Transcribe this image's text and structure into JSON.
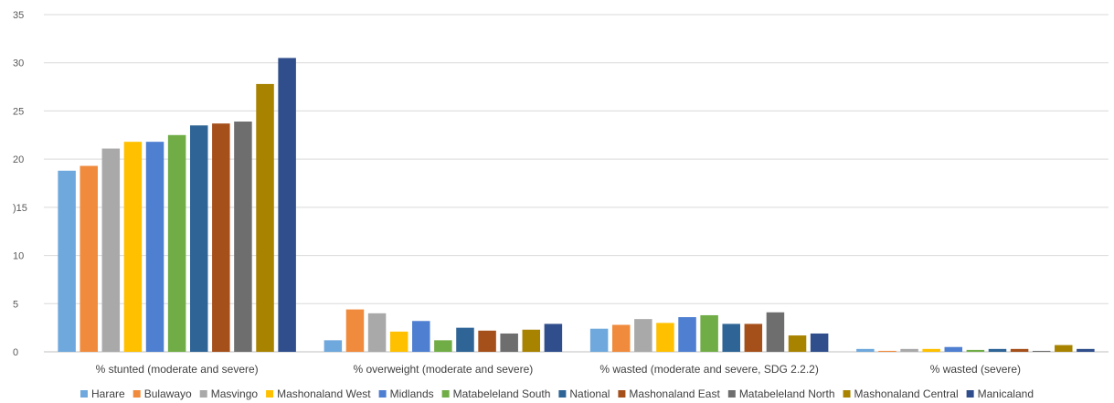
{
  "chart_data": {
    "type": "bar",
    "title": "",
    "xlabel": "",
    "ylabel": "",
    "ylim": [
      0,
      35
    ],
    "yticks": [
      0,
      5,
      10,
      15,
      20,
      25,
      30,
      35
    ],
    "ytick_labels": [
      "0",
      "5",
      "10",
      ")15",
      "20",
      "25",
      "30",
      "35"
    ],
    "grid": true,
    "legend_position": "bottom",
    "categories": [
      "% stunted (moderate and severe)",
      "% overweight (moderate and severe)",
      "% wasted (moderate and severe, SDG 2.2.2)",
      "% wasted (severe)"
    ],
    "series": [
      {
        "name": "Harare",
        "color": "#6FA8DC",
        "values": [
          18.8,
          1.2,
          2.4,
          0.3
        ]
      },
      {
        "name": "Bulawayo",
        "color": "#F08A3C",
        "values": [
          19.3,
          4.4,
          2.8,
          0.1
        ]
      },
      {
        "name": "Masvingo",
        "color": "#A9A9A9",
        "values": [
          21.1,
          4.0,
          3.4,
          0.3
        ]
      },
      {
        "name": "Mashonaland West",
        "color": "#FFC000",
        "values": [
          21.8,
          2.1,
          3.0,
          0.3
        ]
      },
      {
        "name": "Midlands",
        "color": "#4E7FD0",
        "values": [
          21.8,
          3.2,
          3.6,
          0.5
        ]
      },
      {
        "name": "Matabeleland South",
        "color": "#70AD47",
        "values": [
          22.5,
          1.2,
          3.8,
          0.2
        ]
      },
      {
        "name": "National",
        "color": "#2E6496",
        "values": [
          23.5,
          2.5,
          2.9,
          0.3
        ]
      },
      {
        "name": "Mashonaland East",
        "color": "#A5501B",
        "values": [
          23.7,
          2.2,
          2.9,
          0.3
        ]
      },
      {
        "name": "Matabeleland North",
        "color": "#6E6E6E",
        "values": [
          23.9,
          1.9,
          4.1,
          0.1
        ]
      },
      {
        "name": "Mashonaland Central",
        "color": "#A88300",
        "values": [
          27.8,
          2.3,
          1.7,
          0.7
        ]
      },
      {
        "name": "Manicaland",
        "color": "#2F4E8B",
        "values": [
          30.5,
          2.9,
          1.9,
          0.3
        ]
      }
    ]
  }
}
